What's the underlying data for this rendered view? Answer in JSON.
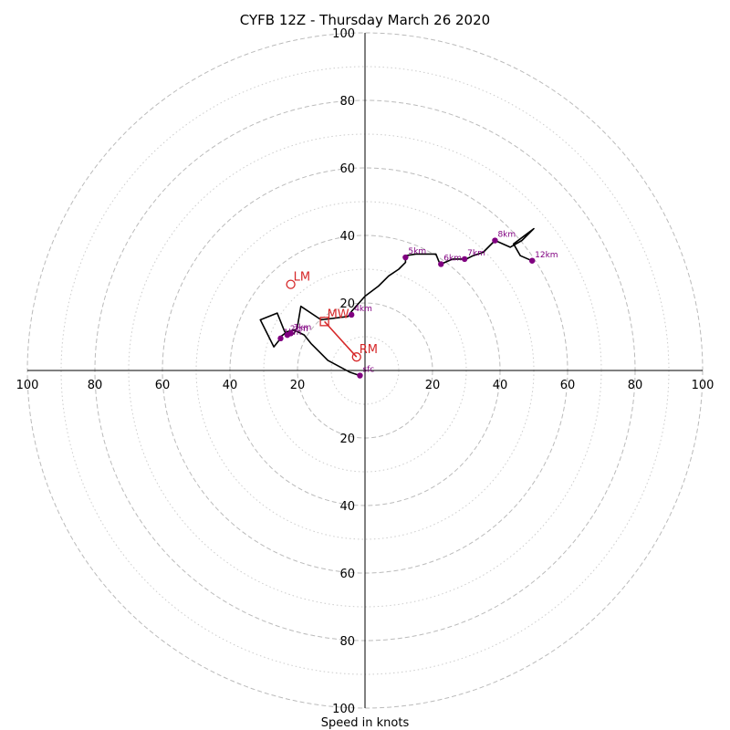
{
  "chart_data": {
    "type": "line",
    "title": "CYFB 12Z - Thursday March 26 2020",
    "xlabel": "Speed in knots",
    "ylabel": "",
    "xlim": [
      -100,
      100
    ],
    "ylim": [
      -100,
      100
    ],
    "rings": [
      20,
      40,
      60,
      80,
      100
    ],
    "minor_rings": [
      10,
      30,
      50,
      70,
      90
    ],
    "tick_labels": {
      "x_left": [
        "100",
        "80",
        "60",
        "40",
        "20"
      ],
      "x_right": [
        "20",
        "40",
        "60",
        "80",
        "100"
      ],
      "y_top": [
        "100",
        "80",
        "60",
        "40",
        "20"
      ],
      "y_bottom": [
        "20",
        "40",
        "60",
        "80",
        "100"
      ]
    },
    "colors": {
      "hodograph": "#000000",
      "points": "#800080",
      "motion": "#d62728",
      "grid": "#bbbbbb"
    },
    "series": [
      {
        "x": [
          -1.5,
          -4.5,
          -11,
          -16,
          -18,
          -21,
          -23,
          -25,
          -25,
          -27,
          -31,
          -26,
          -24,
          -23,
          -21,
          -20,
          -19,
          -13,
          -5,
          -4,
          0,
          4,
          7,
          10,
          12,
          12,
          15,
          21,
          22,
          22.5,
          26,
          30,
          32,
          35,
          38.5,
          43,
          46.5,
          50,
          44,
          46,
          49.5
        ],
        "y": [
          -1.5,
          -0.5,
          3,
          8,
          10.5,
          12,
          11.5,
          10,
          9.5,
          7,
          15,
          17,
          12,
          10,
          11,
          13,
          19,
          15,
          16,
          17.5,
          22,
          25,
          28,
          30,
          32,
          34,
          34.5,
          34.5,
          32,
          31.5,
          33,
          33,
          34,
          35,
          38.5,
          36.5,
          38.5,
          42,
          37.5,
          34,
          32.5
        ]
      }
    ],
    "height_markers": [
      {
        "label": "sfc",
        "x": -1.5,
        "y": -1.5
      },
      {
        "label": "1km",
        "x": -25,
        "y": 9.5
      },
      {
        "label": "2km",
        "x": -23,
        "y": 10.5
      },
      {
        "label": "3km",
        "x": -22,
        "y": 11
      },
      {
        "label": "4km",
        "x": -4,
        "y": 16.5
      },
      {
        "label": "5km",
        "x": 12,
        "y": 33.5
      },
      {
        "label": "6km",
        "x": 22.5,
        "y": 31.5
      },
      {
        "label": "7km",
        "x": 29.5,
        "y": 33
      },
      {
        "label": "8km",
        "x": 38.5,
        "y": 38.5
      },
      {
        "label": "12km",
        "x": 49.5,
        "y": 32.5
      }
    ],
    "storm_motion": [
      {
        "label": "LM",
        "x": -22,
        "y": 25.5,
        "marker": "circle"
      },
      {
        "label": "MW",
        "x": -12,
        "y": 14.5,
        "marker": "square"
      },
      {
        "label": "RM",
        "x": -2.5,
        "y": 4,
        "marker": "circle"
      }
    ],
    "shear_vector": {
      "x1": -12,
      "y1": 14.5,
      "x2": -2.5,
      "y2": 4
    }
  }
}
